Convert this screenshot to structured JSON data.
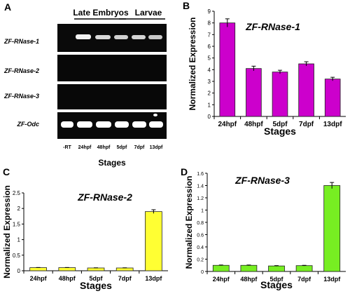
{
  "panels": {
    "a": {
      "letter": "A",
      "group_late": "Late Embryos",
      "group_larvae": "Larvae",
      "rows": [
        "ZF-RNase-1",
        "ZF-RNase-2",
        "ZF-RNase-3",
        "ZF-Odc"
      ],
      "lanes": [
        "-RT",
        "24hpf",
        "48hpf",
        "5dpf",
        "7dpf",
        "13dpf"
      ],
      "xlabel": "Stages"
    },
    "b": {
      "letter": "B"
    },
    "c": {
      "letter": "C"
    },
    "d": {
      "letter": "D"
    }
  },
  "chart_data": [
    {
      "type": "bar",
      "panel": "B",
      "title": "ZF-RNase-1",
      "xlabel": "Stages",
      "ylabel": "Normalized Expression",
      "categories": [
        "24hpf",
        "48hpf",
        "5dpf",
        "7dpf",
        "13dpf"
      ],
      "values": [
        8.0,
        4.1,
        3.8,
        4.5,
        3.2
      ],
      "errors": [
        0.35,
        0.2,
        0.15,
        0.18,
        0.15
      ],
      "ylim": [
        0,
        9
      ],
      "yticks": [
        0,
        1,
        2,
        3,
        4,
        5,
        6,
        7,
        8,
        9
      ],
      "color": "#cc00cc",
      "grid": false
    },
    {
      "type": "bar",
      "panel": "C",
      "title": "ZF-RNase-2",
      "xlabel": "Stages",
      "ylabel": "Normalized Expression",
      "categories": [
        "24hpf",
        "48hpf",
        "5dpf",
        "7dpf",
        "13dpf"
      ],
      "values": [
        0.1,
        0.1,
        0.09,
        0.09,
        1.9
      ],
      "errors": [
        0.005,
        0.005,
        0.005,
        0.005,
        0.06
      ],
      "ylim": [
        0,
        2.5
      ],
      "yticks": [
        0,
        0.5,
        1,
        1.5,
        2,
        2.5
      ],
      "color": "#ffff33",
      "grid": false
    },
    {
      "type": "bar",
      "panel": "D",
      "title": "ZF-RNase-3",
      "xlabel": "Stages",
      "ylabel": "Normalized Expression",
      "categories": [
        "24hpf",
        "48hpf",
        "5dpf",
        "7dpf",
        "13dpf"
      ],
      "values": [
        0.1,
        0.1,
        0.09,
        0.095,
        1.4
      ],
      "errors": [
        0.005,
        0.005,
        0.005,
        0.005,
        0.05
      ],
      "ylim": [
        0,
        1.6
      ],
      "yticks": [
        0,
        0.2,
        0.4,
        0.6,
        0.8,
        1,
        1.2,
        1.4,
        1.6
      ],
      "color": "#77ee22",
      "grid": false
    }
  ]
}
